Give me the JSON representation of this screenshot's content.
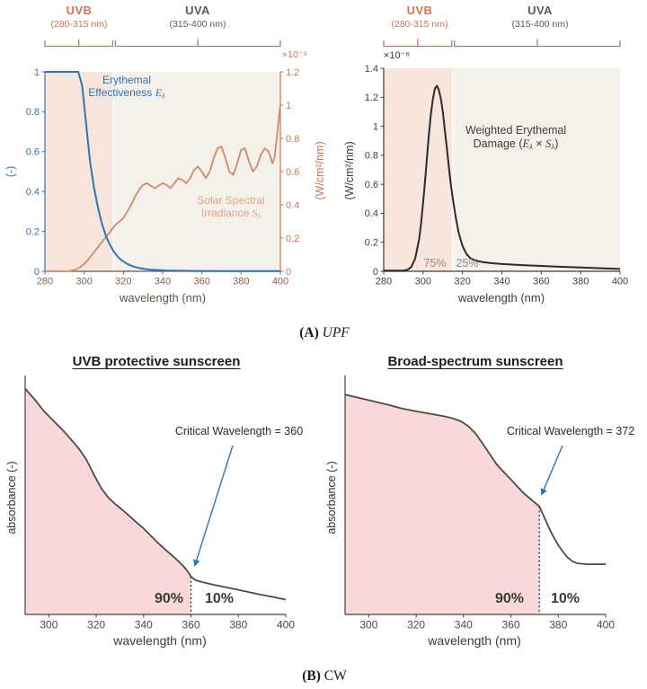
{
  "figure": {
    "captions": {
      "a_prefix": "(A) ",
      "a_label": "UPF",
      "b_prefix": "(B) ",
      "b_label": "CW"
    }
  },
  "colors": {
    "uvb_accent": "#d4714e",
    "uvb_band": "#f8e5dc",
    "uva_accent": "#5c5c50",
    "uva_bracket": "#8c8c7a",
    "uva_band": "#f4f0ea",
    "blue": "#2f74b8",
    "solar_curve": "#cf8a6e",
    "solar_text": "#e2a48b",
    "black_curve": "#2b2b2b",
    "pink_fill": "#f9d8da",
    "abs_curve": "#4d4a47",
    "arrow_blue": "#2e75b6",
    "pct_uvb": "#a5897a",
    "pct_uva": "#8f8f8f",
    "warm_axis": "#8a5f4a",
    "dark": "#3d3d3d"
  },
  "chart_data": [
    {
      "id": "solar-erythemal-spectra",
      "type": "line",
      "xlabel": "wavelength (nm)",
      "xlim": [
        280,
        400
      ],
      "xticks": [
        280,
        300,
        320,
        340,
        360,
        380,
        400
      ],
      "header": {
        "uvb": {
          "title": "UVB",
          "range": "(280-315 nm)"
        },
        "uva": {
          "title": "UVA",
          "range": "(315-400 nm)"
        }
      },
      "left_axis": {
        "label": "(-)",
        "ticks": [
          0,
          0.2,
          0.4,
          0.6,
          0.8,
          1
        ],
        "max": 1
      },
      "right_axis": {
        "label": "(W/cm²/nm)",
        "multiplier": "×10⁻⁴",
        "ticks": [
          0,
          0.2,
          0.4,
          0.6,
          0.8,
          1,
          1.2
        ],
        "max": 1.2
      },
      "annotations": {
        "erythemal": {
          "line1": "Erythemal",
          "line2": "Effectiveness ",
          "sym": "E",
          "sub": "λ"
        },
        "solar": {
          "line1": "Solar Spectral",
          "line2": "Irradiance ",
          "sym": "S",
          "sub": "λ"
        }
      },
      "series": [
        {
          "name": "Erythemal Effectiveness Eλ",
          "axis": "left",
          "points": [
            [
              280,
              1
            ],
            [
              297,
              1
            ],
            [
              299,
              0.93
            ],
            [
              301,
              0.74
            ],
            [
              303,
              0.55
            ],
            [
              305,
              0.42
            ],
            [
              307,
              0.32
            ],
            [
              309,
              0.24
            ],
            [
              311,
              0.18
            ],
            [
              313,
              0.135
            ],
            [
              315,
              0.1
            ],
            [
              317,
              0.075
            ],
            [
              319,
              0.055
            ],
            [
              322,
              0.037
            ],
            [
              325,
              0.024
            ],
            [
              329,
              0.014
            ],
            [
              334,
              0.008
            ],
            [
              342,
              0.004
            ],
            [
              355,
              0.002
            ],
            [
              370,
              0.001
            ],
            [
              400,
              0.001
            ]
          ]
        },
        {
          "name": "Solar Spectral Irradiance Sλ",
          "axis": "right",
          "points": [
            [
              280,
              0
            ],
            [
              292,
              0
            ],
            [
              295,
              0.008
            ],
            [
              298,
              0.025
            ],
            [
              300,
              0.045
            ],
            [
              302,
              0.07
            ],
            [
              304,
              0.1
            ],
            [
              306,
              0.13
            ],
            [
              308,
              0.16
            ],
            [
              310,
              0.19
            ],
            [
              312,
              0.22
            ],
            [
              314,
              0.25
            ],
            [
              316,
              0.28
            ],
            [
              318,
              0.3
            ],
            [
              320,
              0.32
            ],
            [
              322,
              0.36
            ],
            [
              324,
              0.4
            ],
            [
              326,
              0.45
            ],
            [
              328,
              0.49
            ],
            [
              330,
              0.52
            ],
            [
              332,
              0.53
            ],
            [
              334,
              0.515
            ],
            [
              336,
              0.5
            ],
            [
              338,
              0.515
            ],
            [
              340,
              0.53
            ],
            [
              342,
              0.52
            ],
            [
              344,
              0.5
            ],
            [
              346,
              0.53
            ],
            [
              348,
              0.56
            ],
            [
              350,
              0.55
            ],
            [
              352,
              0.53
            ],
            [
              354,
              0.56
            ],
            [
              356,
              0.61
            ],
            [
              358,
              0.63
            ],
            [
              360,
              0.6
            ],
            [
              362,
              0.56
            ],
            [
              364,
              0.6
            ],
            [
              366,
              0.68
            ],
            [
              368,
              0.74
            ],
            [
              370,
              0.75
            ],
            [
              372,
              0.68
            ],
            [
              374,
              0.6
            ],
            [
              376,
              0.58
            ],
            [
              378,
              0.65
            ],
            [
              380,
              0.73
            ],
            [
              382,
              0.74
            ],
            [
              384,
              0.66
            ],
            [
              386,
              0.6
            ],
            [
              388,
              0.63
            ],
            [
              390,
              0.7
            ],
            [
              392,
              0.74
            ],
            [
              394,
              0.72
            ],
            [
              396,
              0.65
            ],
            [
              397,
              0.68
            ],
            [
              398,
              0.78
            ],
            [
              399,
              0.9
            ],
            [
              400,
              1
            ]
          ]
        }
      ]
    },
    {
      "id": "weighted-erythemal-damage",
      "type": "line",
      "xlabel": "wavelength (nm)",
      "xlim": [
        280,
        400
      ],
      "xticks": [
        280,
        300,
        320,
        340,
        360,
        380,
        400
      ],
      "header": {
        "uvb": {
          "title": "UVB",
          "range": "(280-315 nm)"
        },
        "uva": {
          "title": "UVA",
          "range": "(315-400 nm)"
        }
      },
      "y_axis": {
        "label": "(W/cm²/nm)",
        "multiplier": "×10⁻⁶",
        "ticks": [
          0,
          0.2,
          0.4,
          0.6,
          0.8,
          1,
          1.2,
          1.4
        ],
        "max": 1.4
      },
      "annotations": {
        "weighted": {
          "line1": "Weighted Erythemal",
          "line2_prefix": "Damage (",
          "sym1": "E",
          "sub1": "λ",
          "times": " × ",
          "sym2": "S",
          "sub2": "λ",
          "close": ")"
        },
        "uvb_share": "75%",
        "uva_share": "25%"
      },
      "series": [
        {
          "name": "Weighted Erythemal Damage (Eλ × Sλ)",
          "points": [
            [
              280,
              0.005
            ],
            [
              290,
              0.005
            ],
            [
              292,
              0.01
            ],
            [
              294,
              0.03
            ],
            [
              296,
              0.09
            ],
            [
              298,
              0.22
            ],
            [
              299,
              0.33
            ],
            [
              300,
              0.47
            ],
            [
              301,
              0.62
            ],
            [
              302,
              0.79
            ],
            [
              303,
              0.95
            ],
            [
              304,
              1.09
            ],
            [
              305,
              1.19
            ],
            [
              306,
              1.26
            ],
            [
              307,
              1.28
            ],
            [
              308,
              1.25
            ],
            [
              309,
              1.19
            ],
            [
              310,
              1.1
            ],
            [
              311,
              0.98
            ],
            [
              312,
              0.86
            ],
            [
              313,
              0.73
            ],
            [
              314,
              0.61
            ],
            [
              315,
              0.51
            ],
            [
              316,
              0.42
            ],
            [
              317,
              0.34
            ],
            [
              318,
              0.27
            ],
            [
              319,
              0.22
            ],
            [
              320,
              0.175
            ],
            [
              322,
              0.12
            ],
            [
              324,
              0.09
            ],
            [
              326,
              0.078
            ],
            [
              328,
              0.07
            ],
            [
              331,
              0.062
            ],
            [
              335,
              0.056
            ],
            [
              340,
              0.05
            ],
            [
              350,
              0.043
            ],
            [
              360,
              0.037
            ],
            [
              370,
              0.031
            ],
            [
              380,
              0.026
            ],
            [
              390,
              0.021
            ],
            [
              400,
              0.016
            ]
          ]
        }
      ]
    },
    {
      "id": "uvb-protective-sunscreen",
      "type": "area",
      "title": "UVB protective sunscreen",
      "xlabel": "wavelength (nm)",
      "ylabel": "absorbance (-)",
      "xlim": [
        290,
        400
      ],
      "xticks": [
        300,
        320,
        340,
        360,
        380,
        400
      ],
      "ylim": [
        0,
        1
      ],
      "critical_wavelength": 360,
      "annotation": "Critical Wavelength = 360",
      "area_left_pct": "90%",
      "area_right_pct": "10%",
      "series": [
        {
          "name": "absorbance",
          "points": [
            [
              290,
              0.945
            ],
            [
              294,
              0.9
            ],
            [
              298,
              0.85
            ],
            [
              302,
              0.81
            ],
            [
              306,
              0.77
            ],
            [
              310,
              0.725
            ],
            [
              313,
              0.69
            ],
            [
              316,
              0.645
            ],
            [
              319,
              0.585
            ],
            [
              322,
              0.53
            ],
            [
              325,
              0.49
            ],
            [
              328,
              0.462
            ],
            [
              331,
              0.438
            ],
            [
              334,
              0.412
            ],
            [
              337,
              0.385
            ],
            [
              340,
              0.36
            ],
            [
              343,
              0.33
            ],
            [
              346,
              0.3
            ],
            [
              349,
              0.273
            ],
            [
              352,
              0.247
            ],
            [
              355,
              0.22
            ],
            [
              357,
              0.2
            ],
            [
              359,
              0.175
            ],
            [
              360,
              0.158
            ],
            [
              362,
              0.143
            ],
            [
              365,
              0.135
            ],
            [
              370,
              0.123
            ],
            [
              375,
              0.113
            ],
            [
              380,
              0.103
            ],
            [
              385,
              0.092
            ],
            [
              390,
              0.082
            ],
            [
              395,
              0.072
            ],
            [
              400,
              0.062
            ]
          ]
        }
      ]
    },
    {
      "id": "broad-spectrum-sunscreen",
      "type": "area",
      "title": "Broad-spectrum sunscreen",
      "xlabel": "wavelength (nm)",
      "ylabel": "absorbance (-)",
      "xlim": [
        290,
        400
      ],
      "xticks": [
        300,
        320,
        340,
        360,
        380,
        400
      ],
      "ylim": [
        0,
        1
      ],
      "critical_wavelength": 372,
      "annotation": "Critical Wavelength = 372",
      "area_left_pct": "90%",
      "area_right_pct": "10%",
      "series": [
        {
          "name": "absorbance",
          "points": [
            [
              290,
              0.92
            ],
            [
              296,
              0.906
            ],
            [
              302,
              0.892
            ],
            [
              308,
              0.878
            ],
            [
              314,
              0.862
            ],
            [
              320,
              0.85
            ],
            [
              326,
              0.84
            ],
            [
              331,
              0.831
            ],
            [
              335,
              0.822
            ],
            [
              339,
              0.808
            ],
            [
              342,
              0.788
            ],
            [
              345,
              0.758
            ],
            [
              348,
              0.716
            ],
            [
              351,
              0.672
            ],
            [
              354,
              0.628
            ],
            [
              357,
              0.596
            ],
            [
              360,
              0.565
            ],
            [
              363,
              0.532
            ],
            [
              366,
              0.502
            ],
            [
              369,
              0.477
            ],
            [
              372,
              0.452
            ],
            [
              374,
              0.408
            ],
            [
              376,
              0.364
            ],
            [
              378,
              0.324
            ],
            [
              380,
              0.29
            ],
            [
              382,
              0.262
            ],
            [
              384,
              0.238
            ],
            [
              386,
              0.222
            ],
            [
              388,
              0.214
            ],
            [
              392,
              0.21
            ],
            [
              396,
              0.21
            ],
            [
              400,
              0.21
            ]
          ]
        }
      ]
    }
  ]
}
